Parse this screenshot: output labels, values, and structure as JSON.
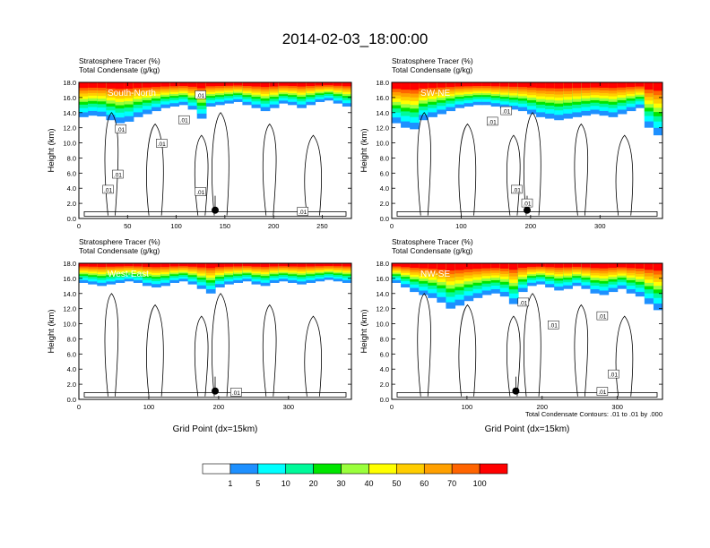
{
  "title": "2014-02-03_18:00:00",
  "colorbar": {
    "colors": [
      "#ffffff",
      "#1e90ff",
      "#00ffff",
      "#00fa9a",
      "#00e600",
      "#9aff3c",
      "#ffff00",
      "#ffcd00",
      "#ffa000",
      "#ff6400",
      "#ff0000"
    ],
    "labels": [
      "1",
      "5",
      "10",
      "20",
      "30",
      "40",
      "50",
      "60",
      "70",
      "100"
    ]
  },
  "chart_data": [
    {
      "type": "heatmap",
      "label": "South-North",
      "subtitle_lines": [
        "Stratosphere Tracer   (%)",
        "Total Condensate   (g/kg)"
      ],
      "ylabel": "Height (km)",
      "xlabel": "",
      "xlim": [
        0,
        280
      ],
      "ylim": [
        0,
        18
      ],
      "xticks": [
        0,
        50,
        100,
        150,
        200,
        250
      ],
      "yticks": [
        "0.0",
        "2.0",
        "4.0",
        "6.0",
        "8.0",
        "10.0",
        "12.0",
        "14.0",
        "16.0",
        "18.0"
      ],
      "tracer_base_km": [
        13.4,
        13.6,
        13.5,
        13.0,
        12.6,
        12.8,
        13.4,
        13.8,
        14.2,
        14.6,
        14.8,
        15.0,
        14.4,
        13.2,
        14.8,
        15.0,
        15.2,
        15.4,
        15.0,
        14.6,
        14.2,
        14.6,
        15.2,
        15.0,
        14.6,
        15.0,
        15.4,
        15.6,
        15.2,
        14.8
      ],
      "contour_labels": [
        {
          "x": 125,
          "y": 16.3,
          "text": ".01"
        },
        {
          "x": 108,
          "y": 13.0,
          "text": ".01"
        },
        {
          "x": 43,
          "y": 11.8,
          "text": ".01"
        },
        {
          "x": 85,
          "y": 9.9,
          "text": ".01"
        },
        {
          "x": 40,
          "y": 5.8,
          "text": ".01"
        },
        {
          "x": 30,
          "y": 3.8,
          "text": ".01"
        },
        {
          "x": 125,
          "y": 3.5,
          "text": ".01"
        },
        {
          "x": 230,
          "y": 0.9,
          "text": ".01"
        }
      ],
      "point": {
        "x": 140,
        "y": 1.1
      }
    },
    {
      "type": "heatmap",
      "label": "SW-NE",
      "subtitle_lines": [
        "Stratosphere Tracer   (%)",
        "Total Condensate   (g/kg)"
      ],
      "ylabel": "Height (km)",
      "xlabel": "",
      "xlim": [
        0,
        390
      ],
      "ylim": [
        0,
        18
      ],
      "xticks": [
        0,
        100,
        200,
        300
      ],
      "yticks": [
        "0.0",
        "2.0",
        "4.0",
        "6.0",
        "8.0",
        "10.0",
        "12.0",
        "14.0",
        "16.0",
        "18.0"
      ],
      "tracer_base_km": [
        12.6,
        12.0,
        11.8,
        13.0,
        13.4,
        13.8,
        14.2,
        14.6,
        14.8,
        15.0,
        15.0,
        14.8,
        14.6,
        14.4,
        14.2,
        13.8,
        13.4,
        13.2,
        13.0,
        13.2,
        13.4,
        13.6,
        13.8,
        13.6,
        13.4,
        13.8,
        14.2,
        14.6,
        12.0,
        11.0
      ],
      "contour_labels": [
        {
          "x": 165,
          "y": 14.2,
          "text": ".01"
        },
        {
          "x": 145,
          "y": 12.8,
          "text": ".01"
        },
        {
          "x": 180,
          "y": 3.8,
          "text": ".01"
        },
        {
          "x": 195,
          "y": 2.0,
          "text": ".01"
        }
      ],
      "point": {
        "x": 195,
        "y": 1.1
      }
    },
    {
      "type": "heatmap",
      "label": "West-East",
      "subtitle_lines": [
        "Stratosphere Tracer   (%)",
        "Total Condensate   (g/kg)"
      ],
      "ylabel": "Height (km)",
      "xlabel": "Grid Point (dx=15km)",
      "xlim": [
        0,
        390
      ],
      "ylim": [
        0,
        18
      ],
      "xticks": [
        0,
        100,
        200,
        300
      ],
      "yticks": [
        "0.0",
        "2.0",
        "4.0",
        "6.0",
        "8.0",
        "10.0",
        "12.0",
        "14.0",
        "16.0",
        "18.0"
      ],
      "tracer_base_km": [
        15.4,
        15.2,
        15.0,
        15.2,
        15.4,
        15.6,
        15.4,
        15.0,
        14.8,
        15.0,
        15.4,
        15.6,
        15.2,
        14.6,
        14.0,
        14.8,
        15.2,
        15.4,
        15.6,
        15.2,
        15.0,
        15.4,
        15.6,
        15.4,
        15.2,
        15.4,
        15.6,
        15.8,
        15.6,
        15.4
      ],
      "contour_labels": [
        {
          "x": 225,
          "y": 0.9,
          "text": ".01"
        }
      ],
      "point": {
        "x": 195,
        "y": 1.1
      }
    },
    {
      "type": "heatmap",
      "label": "NW-SE",
      "subtitle_lines": [
        "Stratosphere Tracer   (%)",
        "Total Condensate   (g/kg)"
      ],
      "ylabel": "Height (km)",
      "xlabel": "Grid Point (dx=15km)",
      "footnote": "Total Condensate Contours: .01 to .01 by .000",
      "xlim": [
        0,
        360
      ],
      "ylim": [
        0,
        18
      ],
      "xticks": [
        0,
        100,
        200,
        300
      ],
      "yticks": [
        "0.0",
        "2.0",
        "4.0",
        "6.0",
        "8.0",
        "10.0",
        "12.0",
        "14.0",
        "16.0",
        "18.0"
      ],
      "tracer_base_km": [
        15.4,
        14.8,
        14.2,
        13.8,
        13.4,
        12.8,
        12.0,
        12.4,
        13.0,
        13.4,
        13.8,
        14.0,
        13.6,
        12.6,
        14.2,
        15.0,
        15.2,
        14.8,
        14.4,
        14.6,
        15.0,
        14.6,
        14.0,
        13.8,
        14.2,
        14.6,
        14.0,
        13.6,
        12.6,
        11.8
      ],
      "contour_labels": [
        {
          "x": 175,
          "y": 12.8,
          "text": ".01"
        },
        {
          "x": 215,
          "y": 9.8,
          "text": ".01"
        },
        {
          "x": 280,
          "y": 11.0,
          "text": ".01"
        },
        {
          "x": 295,
          "y": 3.3,
          "text": ".01"
        },
        {
          "x": 280,
          "y": 1.0,
          "text": ".01"
        }
      ],
      "point": {
        "x": 165,
        "y": 1.1
      }
    }
  ]
}
